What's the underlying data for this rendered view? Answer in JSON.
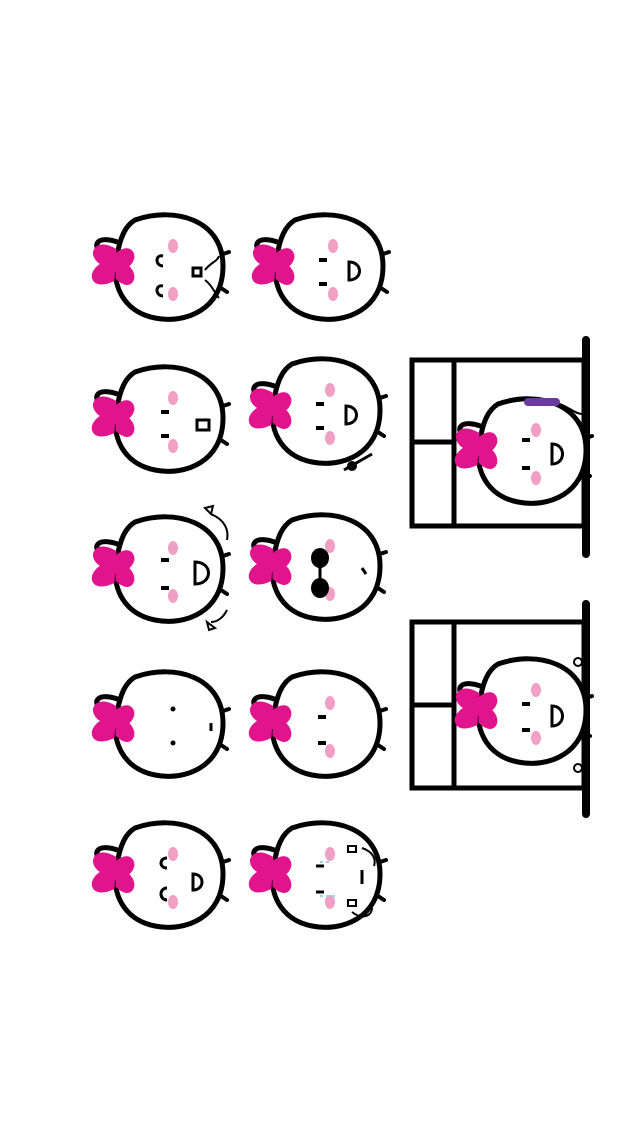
{
  "palette": {
    "background": "#ffffff",
    "outline": "#000000",
    "bow": "#e0148c",
    "blush": "#f0a0c4",
    "headband": "#6a3aa0",
    "tear": "#9ad0e8"
  },
  "stickers": [
    {
      "name": "sticker-wink-sing",
      "icon": "bunny-singing-icon",
      "expression": "singing"
    },
    {
      "name": "sticker-happy",
      "icon": "bunny-smile-icon",
      "expression": "happy"
    },
    {
      "name": "sticker-surprised",
      "icon": "bunny-surprised-icon",
      "expression": "surprised"
    },
    {
      "name": "sticker-waving",
      "icon": "bunny-waving-icon",
      "expression": "waving"
    },
    {
      "name": "sticker-cheer",
      "icon": "bunny-cheer-icon",
      "expression": "cheering"
    },
    {
      "name": "sticker-sunglasses",
      "icon": "bunny-sunglasses-icon",
      "expression": "cool"
    },
    {
      "name": "sticker-blank",
      "icon": "bunny-blank-icon",
      "expression": "blank"
    },
    {
      "name": "sticker-smile",
      "icon": "bunny-content-icon",
      "expression": "content"
    },
    {
      "name": "sticker-grin",
      "icon": "bunny-grin-icon",
      "expression": "grin"
    },
    {
      "name": "sticker-crying",
      "icon": "bunny-crying-icon",
      "expression": "crying"
    }
  ],
  "framed_stickers": [
    {
      "name": "framed-sticker-headphones",
      "icon": "bunny-headphones-icon"
    },
    {
      "name": "framed-sticker-happy",
      "icon": "bunny-happy-icon"
    }
  ]
}
